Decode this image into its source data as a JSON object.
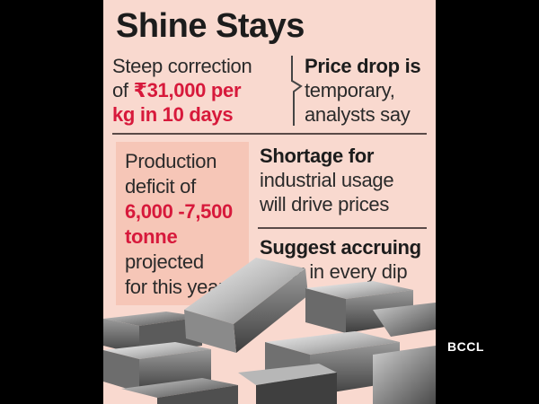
{
  "title": "Shine Stays",
  "left_top": {
    "line1": "Steep correction",
    "line2_pre": "of ",
    "line2_red": "₹31,000 per",
    "line3_red": "kg in 10 days"
  },
  "right_top": {
    "bold": "Price drop is",
    "line2": "temporary,",
    "line3": "analysts say"
  },
  "deficit": {
    "line1": "Production",
    "line2": "deficit of",
    "red1": "6,000 -7,500",
    "red2": "tonne",
    "line5": "projected",
    "line6": "for this year"
  },
  "right_mid": {
    "bold": "Shortage for",
    "line2": "industrial usage",
    "line3": "will drive prices"
  },
  "right_bot": {
    "bold": "Suggest accruing",
    "line2": "silver in every dip"
  },
  "credit": "BCCL",
  "colors": {
    "panel": "#f9d9cf",
    "box": "#f6c6b7",
    "accent_red": "#d7193b",
    "text": "#2a2a2a"
  }
}
